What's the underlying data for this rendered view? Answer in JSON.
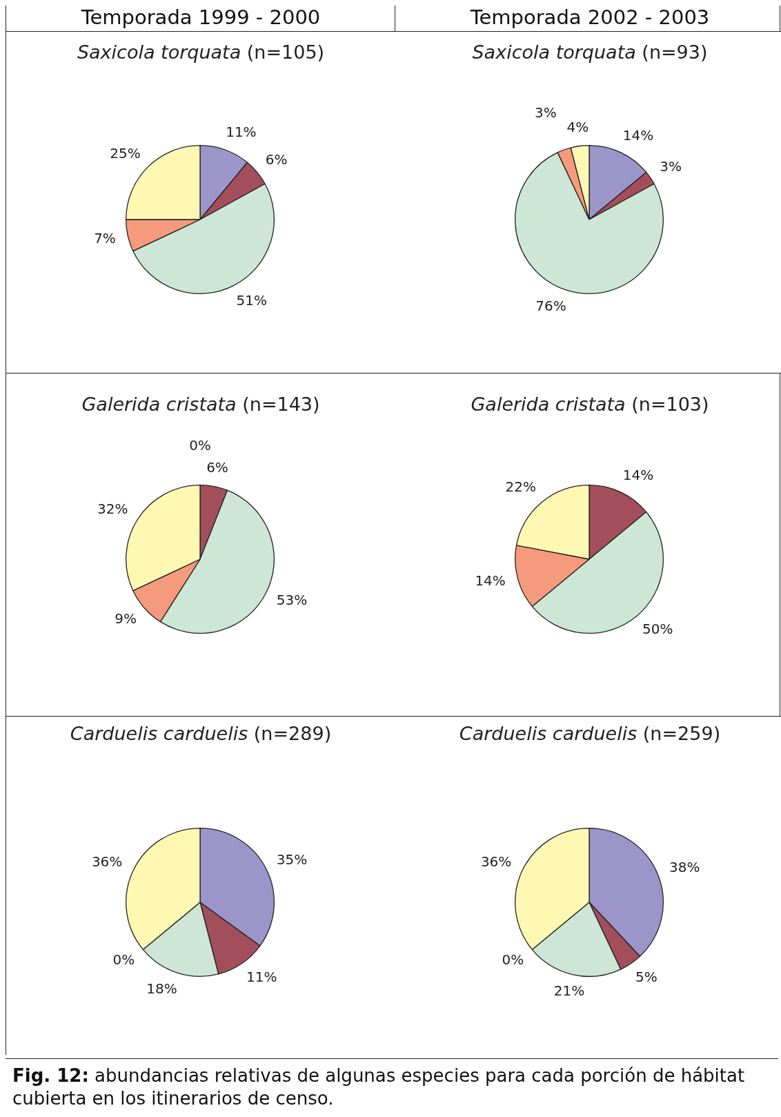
{
  "chart_data": [
    {
      "type": "pie",
      "title": "Saxicola torquata (n=105)",
      "annotations": [
        "Temporada 1999 - 2000"
      ],
      "categories": [
        null,
        null,
        null,
        null,
        null
      ],
      "values": [
        11,
        6,
        51,
        7,
        25
      ],
      "value_labels": [
        "11%",
        "6%",
        "51%",
        "7%",
        "25%"
      ],
      "colors": [
        "#9c95c9",
        "#a34f5b",
        "#cde6d6",
        "#f59a7d",
        "#fff8b3"
      ],
      "legend": false
    },
    {
      "type": "pie",
      "title": "Saxicola torquata (n=93)",
      "annotations": [
        "Temporada 2002 - 2003"
      ],
      "categories": [
        null,
        null,
        null,
        null,
        null
      ],
      "values": [
        14,
        3,
        76,
        3,
        4
      ],
      "value_labels": [
        "14%",
        "3%",
        "76%",
        "3%",
        "4%"
      ],
      "colors": [
        "#9c95c9",
        "#a34f5b",
        "#cde6d6",
        "#f59a7d",
        "#fff8b3"
      ],
      "legend": false
    },
    {
      "type": "pie",
      "title": "Galerida cristata (n=143)",
      "categories": [
        null,
        null,
        null,
        null,
        null
      ],
      "values": [
        0,
        6,
        53,
        9,
        32
      ],
      "value_labels": [
        "0%",
        "6%",
        "53%",
        "9%",
        "32%"
      ],
      "colors": [
        "#9c95c9",
        "#a34f5b",
        "#cde6d6",
        "#f59a7d",
        "#fff8b3"
      ],
      "legend": false
    },
    {
      "type": "pie",
      "title": "Galerida cristata (n=103)",
      "categories": [
        null,
        null,
        null,
        null,
        null
      ],
      "values": [
        0,
        14,
        50,
        14,
        22
      ],
      "value_labels": [
        null,
        "14%",
        "50%",
        "14%",
        "22%"
      ],
      "colors": [
        "#9c95c9",
        "#a34f5b",
        "#cde6d6",
        "#f59a7d",
        "#fff8b3"
      ],
      "legend": false
    },
    {
      "type": "pie",
      "title": "Carduelis carduelis (n=289)",
      "categories": [
        null,
        null,
        null,
        null,
        null
      ],
      "values": [
        35,
        11,
        18,
        0,
        36
      ],
      "value_labels": [
        "35%",
        "11%",
        "18%",
        "0%",
        "36%"
      ],
      "colors": [
        "#9c95c9",
        "#a34f5b",
        "#cde6d6",
        "#f59a7d",
        "#fff8b3"
      ],
      "legend": false
    },
    {
      "type": "pie",
      "title": "Carduelis carduelis (n=259)",
      "annotations": [
        "Fig. 12: abundancias relativas de algunas especies para cada porción de hábitat cubierta en los itinerarios de censo."
      ],
      "categories": [
        null,
        null,
        null,
        null,
        null
      ],
      "values": [
        38,
        5,
        21,
        0,
        36
      ],
      "value_labels": [
        "38%",
        "5%",
        "21%",
        "0%",
        "36%"
      ],
      "colors": [
        "#9c95c9",
        "#a34f5b",
        "#cde6d6",
        "#f59a7d",
        "#fff8b3"
      ],
      "legend": false
    }
  ]
}
